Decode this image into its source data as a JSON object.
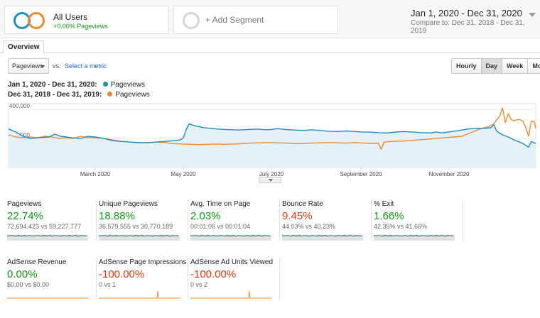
{
  "segments": {
    "active": {
      "title": "All Users",
      "subtitle": "+0.00% Pageviews"
    },
    "add_label": "+ Add Segment"
  },
  "date_range": {
    "primary": "Jan 1, 2020 - Dec 31, 2020",
    "compare": "Compare to: Dec 31, 2018 - Dec 31, 2019"
  },
  "tabs": {
    "overview": "Overview"
  },
  "controls": {
    "metric": "Pageviews",
    "vs": "vs.",
    "select_metric": "Select a metric",
    "granularity": [
      "Hourly",
      "Day",
      "Week",
      "Month"
    ],
    "granularity_active": "Day"
  },
  "legend": [
    {
      "range": "Jan 1, 2020 - Dec 31, 2020:",
      "series": "Pageviews",
      "color": "#1a8ec2"
    },
    {
      "range": "Dec 31, 2018 - Dec 31, 2019:",
      "series": "Pageviews",
      "color": "#f0892a"
    }
  ],
  "chart_data": {
    "type": "line",
    "y_tick_labels": [
      "400,000",
      "200,000"
    ],
    "y_ticks": [
      400000,
      200000
    ],
    "ylim": [
      0,
      440000
    ],
    "x_tick_labels": [
      "March 2020",
      "May 2020",
      "July 2020",
      "September 2020",
      "November 2020"
    ],
    "x_tick_days": [
      60,
      121,
      182,
      244,
      305
    ],
    "x_range_days": [
      0,
      365
    ],
    "series": [
      {
        "name": "Jan 1, 2020 - Dec 31, 2020",
        "color": "#1a8ec2",
        "fill": true,
        "points": [
          [
            0,
            265000
          ],
          [
            5,
            245000
          ],
          [
            10,
            215000
          ],
          [
            15,
            200000
          ],
          [
            20,
            205000
          ],
          [
            28,
            210000
          ],
          [
            32,
            230000
          ],
          [
            36,
            215000
          ],
          [
            40,
            210000
          ],
          [
            44,
            205000
          ],
          [
            50,
            200000
          ],
          [
            55,
            215000
          ],
          [
            60,
            210000
          ],
          [
            66,
            200000
          ],
          [
            72,
            185000
          ],
          [
            78,
            180000
          ],
          [
            84,
            175000
          ],
          [
            90,
            172000
          ],
          [
            96,
            170000
          ],
          [
            102,
            175000
          ],
          [
            108,
            180000
          ],
          [
            114,
            185000
          ],
          [
            119,
            190000
          ],
          [
            121,
            205000
          ],
          [
            123,
            260000
          ],
          [
            125,
            300000
          ],
          [
            130,
            285000
          ],
          [
            135,
            275000
          ],
          [
            140,
            270000
          ],
          [
            145,
            265000
          ],
          [
            150,
            262000
          ],
          [
            155,
            260000
          ],
          [
            160,
            258000
          ],
          [
            166,
            262000
          ],
          [
            172,
            265000
          ],
          [
            178,
            260000
          ],
          [
            182,
            262000
          ],
          [
            186,
            268000
          ],
          [
            192,
            262000
          ],
          [
            198,
            258000
          ],
          [
            204,
            255000
          ],
          [
            210,
            260000
          ],
          [
            216,
            255000
          ],
          [
            222,
            250000
          ],
          [
            228,
            248000
          ],
          [
            234,
            252000
          ],
          [
            240,
            248000
          ],
          [
            244,
            245000
          ],
          [
            250,
            244000
          ],
          [
            256,
            240000
          ],
          [
            262,
            238000
          ],
          [
            266,
            242000
          ],
          [
            270,
            246000
          ],
          [
            274,
            248000
          ],
          [
            280,
            244000
          ],
          [
            286,
            240000
          ],
          [
            292,
            238000
          ],
          [
            296,
            245000
          ],
          [
            300,
            238000
          ],
          [
            305,
            245000
          ],
          [
            312,
            255000
          ],
          [
            318,
            265000
          ],
          [
            324,
            270000
          ],
          [
            330,
            270000
          ],
          [
            334,
            275000
          ],
          [
            336,
            295000
          ],
          [
            338,
            250000
          ],
          [
            342,
            225000
          ],
          [
            346,
            210000
          ],
          [
            350,
            190000
          ],
          [
            354,
            175000
          ],
          [
            357,
            160000
          ],
          [
            360,
            140000
          ],
          [
            362,
            180000
          ],
          [
            365,
            165000
          ]
        ]
      },
      {
        "name": "Dec 31, 2018 - Dec 31, 2019",
        "color": "#f0892a",
        "fill": false,
        "points": [
          [
            0,
            225000
          ],
          [
            5,
            210000
          ],
          [
            10,
            205000
          ],
          [
            15,
            210000
          ],
          [
            20,
            205000
          ],
          [
            25,
            215000
          ],
          [
            30,
            210000
          ],
          [
            35,
            200000
          ],
          [
            40,
            205000
          ],
          [
            45,
            200000
          ],
          [
            50,
            215000
          ],
          [
            55,
            205000
          ],
          [
            60,
            205000
          ],
          [
            66,
            200000
          ],
          [
            72,
            190000
          ],
          [
            78,
            180000
          ],
          [
            84,
            175000
          ],
          [
            90,
            170000
          ],
          [
            96,
            172000
          ],
          [
            102,
            175000
          ],
          [
            108,
            172000
          ],
          [
            114,
            165000
          ],
          [
            120,
            162000
          ],
          [
            126,
            160000
          ],
          [
            132,
            158000
          ],
          [
            138,
            160000
          ],
          [
            144,
            162000
          ],
          [
            150,
            160000
          ],
          [
            156,
            162000
          ],
          [
            162,
            165000
          ],
          [
            168,
            168000
          ],
          [
            174,
            170000
          ],
          [
            180,
            172000
          ],
          [
            186,
            170000
          ],
          [
            192,
            168000
          ],
          [
            198,
            165000
          ],
          [
            204,
            165000
          ],
          [
            210,
            168000
          ],
          [
            216,
            170000
          ],
          [
            222,
            172000
          ],
          [
            228,
            170000
          ],
          [
            234,
            168000
          ],
          [
            240,
            172000
          ],
          [
            246,
            168000
          ],
          [
            252,
            166000
          ],
          [
            256,
            168000
          ],
          [
            258,
            125000
          ],
          [
            260,
            175000
          ],
          [
            266,
            180000
          ],
          [
            272,
            182000
          ],
          [
            278,
            185000
          ],
          [
            284,
            190000
          ],
          [
            290,
            195000
          ],
          [
            296,
            200000
          ],
          [
            302,
            205000
          ],
          [
            308,
            210000
          ],
          [
            314,
            215000
          ],
          [
            320,
            240000
          ],
          [
            326,
            265000
          ],
          [
            332,
            280000
          ],
          [
            336,
            300000
          ],
          [
            338,
            330000
          ],
          [
            340,
            350000
          ],
          [
            342,
            410000
          ],
          [
            344,
            310000
          ],
          [
            346,
            370000
          ],
          [
            348,
            330000
          ],
          [
            350,
            320000
          ],
          [
            352,
            330000
          ],
          [
            354,
            330000
          ],
          [
            356,
            320000
          ],
          [
            358,
            280000
          ],
          [
            360,
            215000
          ],
          [
            362,
            320000
          ],
          [
            364,
            315000
          ],
          [
            365,
            270000
          ]
        ]
      }
    ]
  },
  "scorecards": [
    {
      "label": "Pageviews",
      "value": "22.74%",
      "compare": "72,694,423 vs 59,227,777",
      "value_color": "#109618",
      "spark": "flat"
    },
    {
      "label": "Unique Pageviews",
      "value": "18.88%",
      "compare": "36,579,555 vs 30,770,189",
      "value_color": "#109618",
      "spark": "flat"
    },
    {
      "label": "Avg. Time on Page",
      "value": "2.03%",
      "compare": "00:01:06 vs 00:01:04",
      "value_color": "#109618",
      "spark": "flat"
    },
    {
      "label": "Bounce Rate",
      "value": "9.45%",
      "compare": "44.03% vs 40.23%",
      "value_color": "#dc3912",
      "spark": "flat"
    },
    {
      "label": "% Exit",
      "value": "1.66%",
      "compare": "42.35% vs 41.66%",
      "value_color": "#109618",
      "spark": "flat"
    },
    {
      "label": "AdSense Revenue",
      "value": "0.00%",
      "compare": "$0.00 vs $0.00",
      "value_color": "#109618",
      "spark": "zero"
    },
    {
      "label": "AdSense Page Impressions",
      "value": "-100.00%",
      "compare": "0 vs 1",
      "value_color": "#dc3912",
      "spark": "spike"
    },
    {
      "label": "AdSense Ad Units Viewed",
      "value": "-100.00%",
      "compare": "0 vs 2",
      "value_color": "#dc3912",
      "spark": "spike"
    }
  ]
}
